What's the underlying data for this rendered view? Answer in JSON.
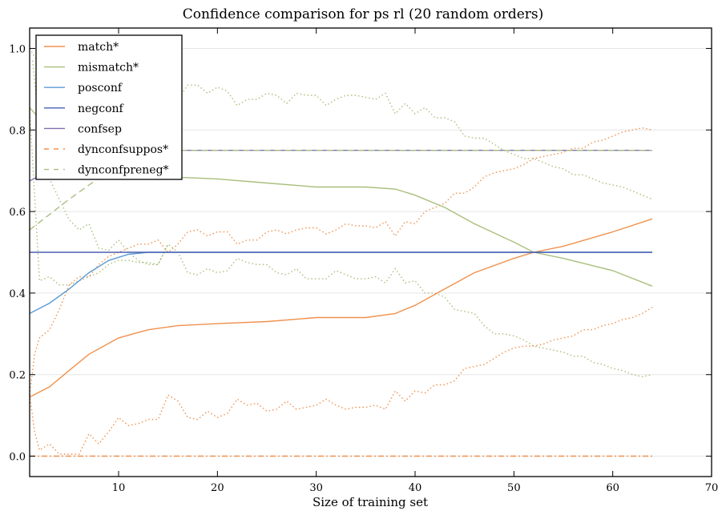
{
  "chart_data": {
    "type": "line",
    "title": "Confidence comparison for ps rl (20 random orders)",
    "xlabel": "Size of training set",
    "ylabel": "",
    "xlim": [
      1,
      70
    ],
    "ylim": [
      -0.05,
      1.05
    ],
    "xticks": [
      10,
      20,
      30,
      40,
      50,
      60,
      70
    ],
    "yticks": [
      0.0,
      0.2,
      0.4,
      0.6,
      0.8,
      1.0
    ],
    "xtick_labels": [
      "10",
      "20",
      "30",
      "40",
      "50",
      "60",
      "70"
    ],
    "ytick_labels": [
      "0.0",
      "0.2",
      "0.4",
      "0.6",
      "0.8",
      "1.0"
    ],
    "grid": "horizontal",
    "legend_position": "top-left",
    "series": [
      {
        "name": "match*",
        "color": "#f0914e",
        "style": "solid",
        "x": [
          1,
          3,
          5,
          7,
          10,
          13,
          16,
          20,
          25,
          30,
          35,
          38,
          40,
          43,
          46,
          50,
          52,
          55,
          60,
          64
        ],
        "y": [
          0.145,
          0.17,
          0.21,
          0.25,
          0.29,
          0.31,
          0.32,
          0.325,
          0.33,
          0.34,
          0.34,
          0.35,
          0.37,
          0.41,
          0.45,
          0.485,
          0.5,
          0.515,
          0.55,
          0.582
        ]
      },
      {
        "name": "mismatch*",
        "color": "#a8bf7c",
        "style": "solid",
        "x": [
          1,
          3,
          6,
          10,
          15,
          20,
          25,
          30,
          35,
          38,
          40,
          43,
          46,
          50,
          52,
          55,
          60,
          64
        ],
        "y": [
          0.855,
          0.8,
          0.74,
          0.7,
          0.685,
          0.68,
          0.67,
          0.66,
          0.66,
          0.655,
          0.64,
          0.61,
          0.57,
          0.525,
          0.5,
          0.485,
          0.455,
          0.417
        ]
      },
      {
        "name": "posconf",
        "color": "#5b9bd5",
        "style": "solid",
        "x": [
          1,
          3,
          5,
          7,
          9,
          11,
          13,
          20,
          64
        ],
        "y": [
          0.35,
          0.375,
          0.41,
          0.45,
          0.48,
          0.495,
          0.5,
          0.5,
          0.5
        ]
      },
      {
        "name": "negconf",
        "color": "#4a5fb0",
        "style": "solid",
        "x": [
          1,
          64
        ],
        "y": [
          0.5,
          0.5
        ]
      },
      {
        "name": "confsep",
        "color": "#8070b0",
        "style": "solid",
        "x": [
          1,
          3,
          5,
          8,
          64
        ],
        "y": [
          0.675,
          0.7,
          0.74,
          0.75,
          0.75
        ]
      },
      {
        "name": "dynconfsuppos*",
        "color": "#f0914e",
        "style": "dashdot",
        "x": [
          1,
          64
        ],
        "y": [
          0.0,
          0.0
        ]
      },
      {
        "name": "dynconfpreneg*",
        "color": "#a8bf7c",
        "style": "dashed",
        "x": [
          1,
          5,
          9,
          12,
          64
        ],
        "y": [
          0.555,
          0.63,
          0.7,
          0.75,
          0.75
        ]
      }
    ],
    "bands": [
      {
        "color": "#f0914e",
        "x": [
          1,
          1.5,
          2,
          3,
          4,
          5,
          6,
          7,
          8,
          9,
          10,
          11,
          12,
          13,
          14,
          15,
          16,
          17,
          18,
          19,
          20,
          21,
          22,
          23,
          24,
          25,
          26,
          27,
          28,
          29,
          30,
          31,
          32,
          33,
          34,
          35,
          36,
          37,
          38,
          39,
          40,
          41,
          42,
          43,
          44,
          45,
          46,
          47,
          48,
          49,
          50,
          51,
          52,
          53,
          54,
          55,
          56,
          57,
          58,
          59,
          60,
          61,
          62,
          63,
          64
        ],
        "y": [
          0.15,
          0.25,
          0.29,
          0.31,
          0.36,
          0.42,
          0.44,
          0.44,
          0.47,
          0.49,
          0.5,
          0.51,
          0.52,
          0.52,
          0.53,
          0.5,
          0.52,
          0.55,
          0.555,
          0.54,
          0.55,
          0.55,
          0.52,
          0.53,
          0.53,
          0.55,
          0.555,
          0.545,
          0.555,
          0.56,
          0.56,
          0.545,
          0.555,
          0.57,
          0.565,
          0.565,
          0.56,
          0.575,
          0.54,
          0.575,
          0.57,
          0.6,
          0.61,
          0.62,
          0.645,
          0.645,
          0.66,
          0.685,
          0.695,
          0.7,
          0.705,
          0.715,
          0.73,
          0.735,
          0.74,
          0.745,
          0.755,
          0.755,
          0.77,
          0.775,
          0.785,
          0.795,
          0.8,
          0.805,
          0.8
        ]
      },
      {
        "color": "#f0914e",
        "x": [
          1,
          1.5,
          2,
          3,
          4,
          5,
          6,
          7,
          8,
          9,
          10,
          11,
          12,
          13,
          14,
          15,
          16,
          17,
          18,
          19,
          20,
          21,
          22,
          23,
          24,
          25,
          26,
          27,
          28,
          29,
          30,
          31,
          32,
          33,
          34,
          35,
          36,
          37,
          38,
          39,
          40,
          41,
          42,
          43,
          44,
          45,
          46,
          47,
          48,
          49,
          50,
          51,
          52,
          53,
          54,
          55,
          56,
          57,
          58,
          59,
          60,
          61,
          62,
          63,
          64
        ],
        "y": [
          0.15,
          0.06,
          0.015,
          0.03,
          0.005,
          0.005,
          0.005,
          0.055,
          0.03,
          0.06,
          0.095,
          0.075,
          0.08,
          0.09,
          0.09,
          0.15,
          0.135,
          0.095,
          0.09,
          0.11,
          0.095,
          0.105,
          0.14,
          0.125,
          0.13,
          0.11,
          0.115,
          0.135,
          0.115,
          0.12,
          0.125,
          0.14,
          0.125,
          0.115,
          0.12,
          0.12,
          0.125,
          0.115,
          0.16,
          0.135,
          0.16,
          0.155,
          0.175,
          0.175,
          0.185,
          0.215,
          0.22,
          0.225,
          0.24,
          0.255,
          0.265,
          0.27,
          0.27,
          0.275,
          0.285,
          0.29,
          0.295,
          0.31,
          0.31,
          0.32,
          0.325,
          0.335,
          0.34,
          0.35,
          0.365
        ]
      },
      {
        "color": "#a8bf7c",
        "x": [
          1,
          2,
          5,
          10,
          15,
          16,
          17,
          18,
          19,
          20,
          21,
          22,
          23,
          24,
          25,
          26,
          27,
          28,
          29,
          30,
          31,
          32,
          33,
          34,
          35,
          36,
          37,
          38,
          39,
          40,
          41,
          42,
          43,
          44,
          45,
          46,
          47,
          48,
          49,
          50,
          51,
          52,
          53,
          54,
          55,
          56,
          57,
          58,
          59,
          60,
          61,
          62,
          63,
          64
        ],
        "y": [
          1.0,
          0.96,
          0.92,
          0.9,
          0.885,
          0.875,
          0.91,
          0.91,
          0.89,
          0.905,
          0.895,
          0.86,
          0.875,
          0.875,
          0.89,
          0.885,
          0.865,
          0.89,
          0.885,
          0.885,
          0.86,
          0.875,
          0.885,
          0.885,
          0.88,
          0.875,
          0.89,
          0.84,
          0.865,
          0.84,
          0.855,
          0.83,
          0.83,
          0.82,
          0.785,
          0.78,
          0.78,
          0.765,
          0.75,
          0.74,
          0.73,
          0.73,
          0.72,
          0.71,
          0.705,
          0.69,
          0.69,
          0.68,
          0.67,
          0.665,
          0.66,
          0.65,
          0.64,
          0.63
        ]
      },
      {
        "color": "#a8bf7c",
        "x": [
          1.3,
          2,
          3,
          4,
          5,
          6,
          7,
          8,
          9,
          10,
          11,
          12,
          13,
          14,
          15
        ],
        "y": [
          0.97,
          0.8,
          0.68,
          0.63,
          0.58,
          0.555,
          0.57,
          0.51,
          0.505,
          0.53,
          0.5,
          0.48,
          0.47,
          0.47,
          0.52
        ]
      },
      {
        "color": "#a8bf7c",
        "x": [
          1,
          2,
          3,
          4,
          5,
          6,
          7,
          8,
          9,
          10,
          11,
          12,
          13,
          14,
          15,
          16,
          17,
          18,
          19,
          20,
          21,
          22,
          23,
          24,
          25,
          26,
          27,
          28,
          29,
          30,
          31,
          32,
          33,
          34,
          35,
          36,
          37,
          38,
          39,
          40,
          41,
          42,
          43,
          44,
          45,
          46,
          47,
          48,
          49,
          50,
          51,
          52,
          53,
          54,
          55,
          56,
          57,
          58,
          59,
          60,
          61,
          62,
          63,
          64
        ],
        "y": [
          0.85,
          0.43,
          0.44,
          0.42,
          0.42,
          0.43,
          0.44,
          0.45,
          0.47,
          0.48,
          0.48,
          0.475,
          0.475,
          0.47,
          0.52,
          0.5,
          0.45,
          0.445,
          0.46,
          0.45,
          0.455,
          0.485,
          0.475,
          0.47,
          0.47,
          0.45,
          0.445,
          0.46,
          0.435,
          0.435,
          0.435,
          0.455,
          0.445,
          0.435,
          0.435,
          0.44,
          0.425,
          0.46,
          0.425,
          0.43,
          0.4,
          0.4,
          0.39,
          0.36,
          0.355,
          0.35,
          0.32,
          0.3,
          0.3,
          0.295,
          0.285,
          0.27,
          0.265,
          0.26,
          0.255,
          0.245,
          0.245,
          0.23,
          0.225,
          0.215,
          0.21,
          0.2,
          0.195,
          0.2
        ]
      }
    ]
  }
}
